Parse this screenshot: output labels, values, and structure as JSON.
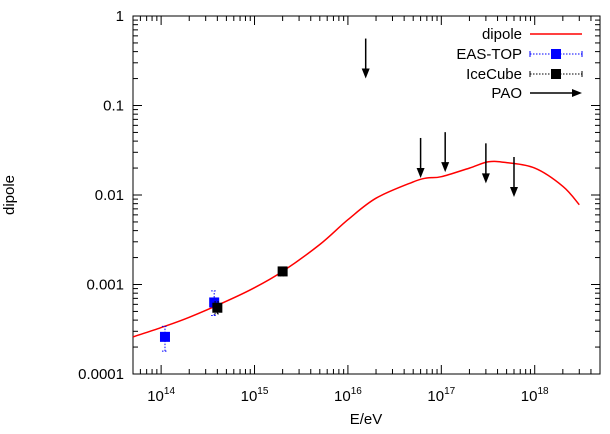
{
  "chart_data": {
    "type": "scatter",
    "xlabel": "E/eV",
    "ylabel": "dipole",
    "xscale": "log",
    "yscale": "log",
    "xlim": [
      50000000000000.0,
      5e+18
    ],
    "ylim": [
      0.0001,
      1
    ],
    "x_ticks": [
      {
        "base": "10",
        "exp": "14",
        "value": 100000000000000.0
      },
      {
        "base": "10",
        "exp": "15",
        "value": 1000000000000000.0
      },
      {
        "base": "10",
        "exp": "16",
        "value": 1e+16
      },
      {
        "base": "10",
        "exp": "17",
        "value": 1e+17
      },
      {
        "base": "10",
        "exp": "18",
        "value": 1e+18
      }
    ],
    "y_ticks": [
      {
        "label": "1",
        "value": 1
      },
      {
        "label": "0.1",
        "value": 0.1
      },
      {
        "label": "0.01",
        "value": 0.01
      },
      {
        "label": "0.001",
        "value": 0.001
      },
      {
        "label": "0.0001",
        "value": 0.0001
      }
    ],
    "legend_position": "top-right",
    "series": [
      {
        "name": "dipole",
        "kind": "line",
        "color": "#ff0000",
        "points": [
          [
            50000000000000.0,
            0.00026
          ],
          [
            100000000000000.0,
            0.00033
          ],
          [
            200000000000000.0,
            0.00043
          ],
          [
            500000000000000.0,
            0.00065
          ],
          [
            1000000000000000.0,
            0.00092
          ],
          [
            2000000000000000.0,
            0.0014
          ],
          [
            5000000000000000.0,
            0.0028
          ],
          [
            1e+16,
            0.0053
          ],
          [
            2e+16,
            0.0092
          ],
          [
            5e+16,
            0.014
          ],
          [
            7e+16,
            0.0155
          ],
          [
            1e+17,
            0.016
          ],
          [
            2e+17,
            0.02
          ],
          [
            3.2e+17,
            0.0235
          ],
          [
            5e+17,
            0.023
          ],
          [
            1e+18,
            0.02
          ],
          [
            2e+18,
            0.0125
          ],
          [
            3e+18,
            0.0078
          ]
        ]
      },
      {
        "name": "EAS-TOP",
        "kind": "points",
        "color": "#0000ff",
        "points": [
          {
            "x": 110000000000000.0,
            "y": 0.00026,
            "ylo": 0.00018,
            "yhi": 0.00034
          },
          {
            "x": 370000000000000.0,
            "y": 0.00063,
            "ylo": 0.00045,
            "yhi": 0.00085
          }
        ]
      },
      {
        "name": "IceCube",
        "kind": "points",
        "color": "#000000",
        "points": [
          {
            "x": 400000000000000.0,
            "y": 0.00055,
            "ylo": 0.00047,
            "yhi": 0.00064
          },
          {
            "x": 2000000000000000.0,
            "y": 0.0014,
            "ylo": 0.00125,
            "yhi": 0.00155
          }
        ]
      },
      {
        "name": "PAO",
        "kind": "upper_limits",
        "color": "#000000",
        "points": [
          {
            "x": 1.55e+16,
            "y": 0.2
          },
          {
            "x": 6e+16,
            "y": 0.0155
          },
          {
            "x": 1.1e+17,
            "y": 0.018
          },
          {
            "x": 3e+17,
            "y": 0.0135
          },
          {
            "x": 6e+17,
            "y": 0.0095
          }
        ]
      }
    ]
  }
}
